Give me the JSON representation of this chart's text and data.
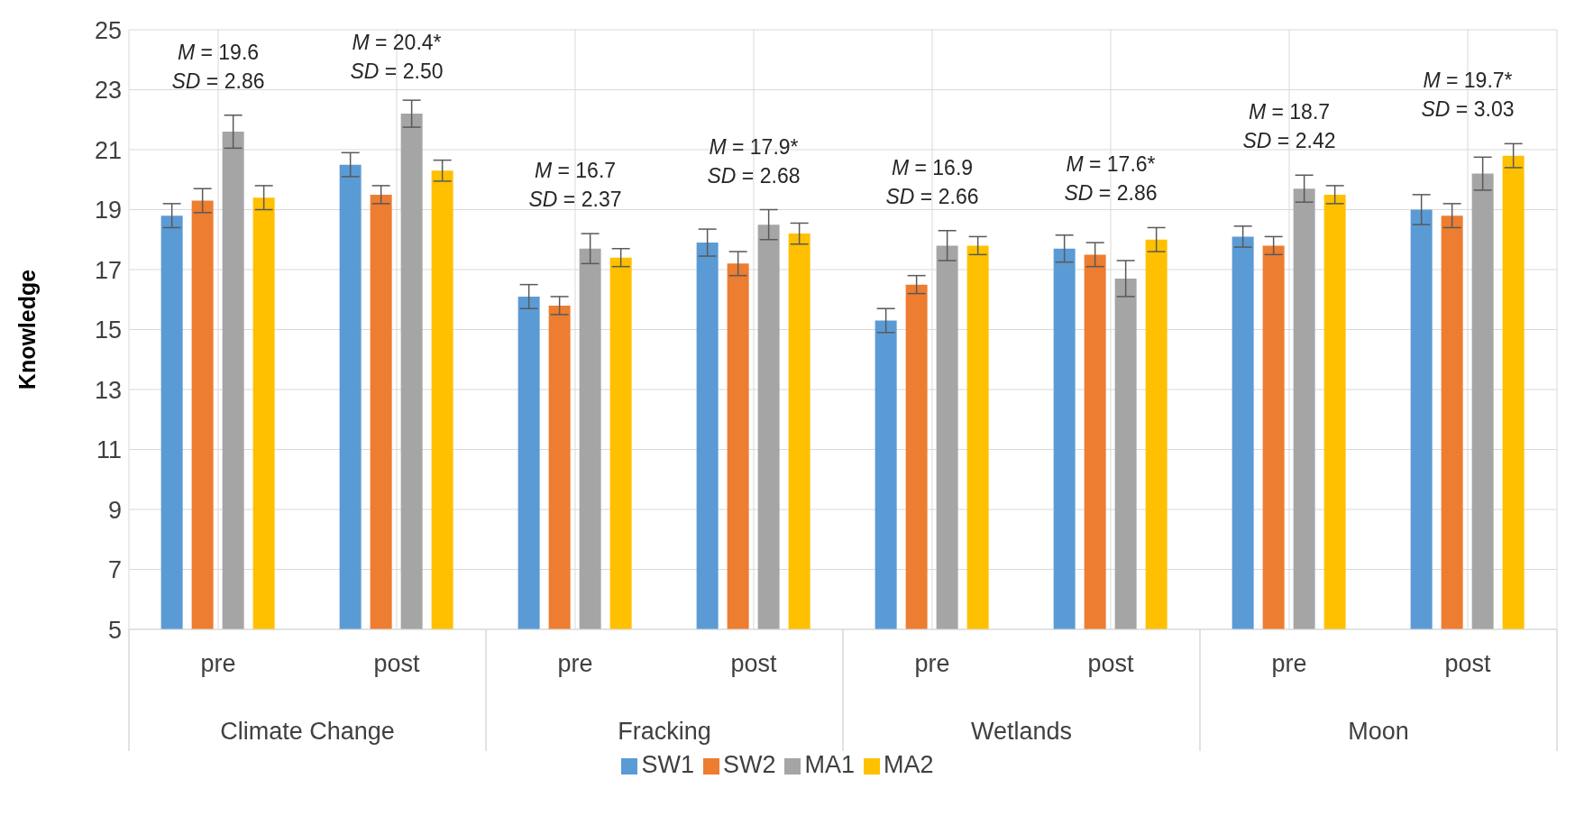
{
  "chart_data": {
    "type": "bar",
    "ylabel": "Knowledge",
    "categories": [
      "pre",
      "post",
      "pre",
      "post",
      "pre",
      "post",
      "pre",
      "post"
    ],
    "series": [
      {
        "name": "SW1",
        "color": "#5b9bd5",
        "values": [
          18.8,
          20.5,
          16.1,
          17.9,
          15.3,
          17.7,
          18.1,
          19.0
        ],
        "errors": [
          0.4,
          0.4,
          0.4,
          0.45,
          0.4,
          0.45,
          0.35,
          0.5
        ]
      },
      {
        "name": "SW2",
        "color": "#ed7d31",
        "values": [
          19.3,
          19.5,
          15.8,
          17.2,
          16.5,
          17.5,
          17.8,
          18.8
        ],
        "errors": [
          0.4,
          0.3,
          0.3,
          0.4,
          0.3,
          0.4,
          0.3,
          0.4
        ]
      },
      {
        "name": "MA1",
        "color": "#a5a5a5",
        "values": [
          21.6,
          22.2,
          17.7,
          18.5,
          17.8,
          16.7,
          19.7,
          20.2
        ],
        "errors": [
          0.55,
          0.45,
          0.5,
          0.5,
          0.5,
          0.6,
          0.45,
          0.55
        ]
      },
      {
        "name": "MA2",
        "color": "#ffc000",
        "values": [
          19.4,
          20.3,
          17.4,
          18.2,
          17.8,
          18.0,
          19.5,
          20.8
        ],
        "errors": [
          0.4,
          0.35,
          0.3,
          0.35,
          0.3,
          0.4,
          0.3,
          0.4
        ]
      }
    ],
    "ylim": [
      5,
      25
    ],
    "yticks": [
      5,
      7,
      9,
      11,
      13,
      15,
      17,
      19,
      21,
      23,
      25
    ],
    "grid": true,
    "legend": "bottom",
    "annotations": [
      "M = 19.6",
      "SD = 2.86",
      "M = 20.4*",
      "SD = 2.50",
      "M = 16.7",
      "SD = 2.37",
      "M = 17.9*",
      "SD = 2.68",
      "M = 16.9",
      "SD = 2.66",
      "M = 17.6*",
      "SD = 2.86",
      "M = 18.7",
      "SD = 2.42",
      "M = 19.7*",
      "SD = 3.03",
      "Climate Change",
      "Fracking",
      "Wetlands",
      "Moon"
    ]
  }
}
